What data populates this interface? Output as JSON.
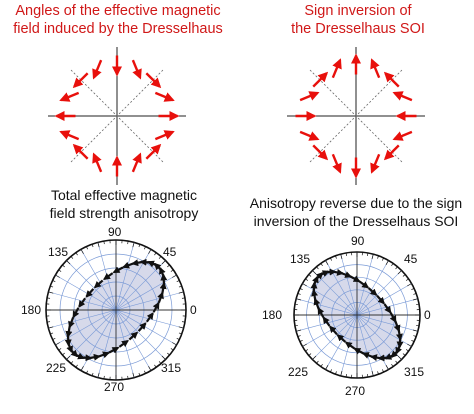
{
  "panels": [
    {
      "title_line1": "Angles of the effective magnetic",
      "title_line2": "field induced by the Dresselhaus",
      "vector_type": "dresselhaus"
    },
    {
      "title_line1": "Sign inversion of",
      "title_line2": "the Dresselhaus SOI",
      "vector_type": "inverted-dresselhaus"
    },
    {
      "title_line1": "Total effective magnetic",
      "title_line2": "field strength anisotropy",
      "angle_labels": [
        "90",
        "45",
        "0",
        "315",
        "270",
        "225",
        "180",
        "135"
      ],
      "ellipse_major_axis_angle_deg": 45,
      "arrow_direction": "counterclockwise"
    },
    {
      "title_line1": "Anisotropy reverse due to the sign",
      "title_line2": "inversion of the Dresselhaus SOI",
      "angle_labels": [
        "90",
        "45",
        "0",
        "315",
        "270",
        "225",
        "180",
        "135"
      ],
      "ellipse_major_axis_angle_deg": 135,
      "arrow_direction": "clockwise"
    }
  ],
  "colors": {
    "title_red": "#d01818",
    "arrow_red": "#e8100c",
    "polar_fill": "#d6d9ea",
    "polar_grid": "#7a9ad6"
  }
}
